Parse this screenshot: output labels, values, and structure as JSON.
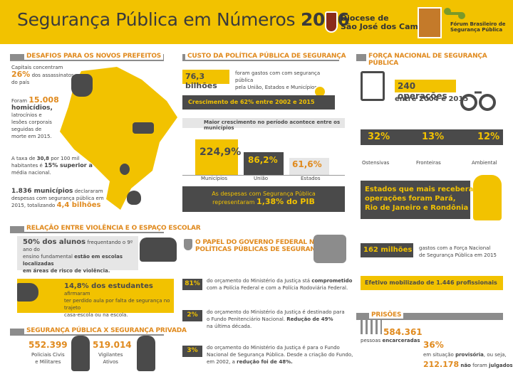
{
  "header": {
    "title_regular": "Segurança Pública em Números",
    "title_year": "2016",
    "diocese_line1": "Diocese de",
    "diocese_line2": "São José dos Campos",
    "forum_line1": "Fórum Brasileiro de",
    "forum_line2": "Segurança Pública"
  },
  "desafios": {
    "heading": "DESAFIOS PARA OS NOVOS PREFEITOS",
    "capitais_line1": "Capitais concentram",
    "capitais_pct": "26%",
    "capitais_line2": "dos assassinatos",
    "capitais_line3": "do país",
    "foram": "Foram",
    "homicidios_num": "15.008",
    "homicidios_label": "homicídios,",
    "lat_1": "latrocínios e",
    "lat_2": "lesões corporais",
    "lat_3": "seguidas de",
    "lat_4": "morte em 2015.",
    "taxa_1": "A taxa de",
    "taxa_num": "30,8",
    "taxa_2": "por 100 mil",
    "taxa_3": "habitantes é",
    "taxa_pct": "15% superior a",
    "taxa_4": "média nacional.",
    "mun_num": "1.836 municípios",
    "mun_1": "declararam",
    "mun_2": "despesas com segurança pública em",
    "mun_3": "2015, totalizando",
    "mun_total": "4,4 bilhões"
  },
  "custo": {
    "heading": "CUSTO DA POLÍTICA PÚBLICA DE SEGURANÇA",
    "valor": "76,3 bilhões",
    "desc_1": "foram gastos com com segurança pública",
    "desc_2": "pela União, Estados e Municípios.",
    "crescimento": "Crescimento de 62% entre 2002 e 2015",
    "maior": "Maior crescimento no período acontece entre os municípios",
    "bars": [
      {
        "label": "Municípios",
        "value": "224,9%"
      },
      {
        "label": "União",
        "value": "86,2%"
      },
      {
        "label": "Estados",
        "value": "61,6%"
      }
    ],
    "despesas_1": "As despesas com Segurança Pública",
    "despesas_2": "representaram",
    "despesas_pct": "1,38% do PIB"
  },
  "forca": {
    "heading": "FORÇA NACIONAL DE SEGURANÇA PÚBLICA",
    "operacoes": "240 operações",
    "periodo": "entre 2004 e 2015",
    "pcts": [
      {
        "value": "32%",
        "label": "Ostensivas"
      },
      {
        "value": "13%",
        "label": "Fronteiras"
      },
      {
        "value": "12%",
        "label": "Ambiental"
      }
    ],
    "estados_1": "Estados que mais receberam",
    "estados_2": "operações foram Pará,",
    "estados_3": "Rio de Janeiro e Rondônia",
    "milhoes": "162 milhões",
    "milhoes_1": "gastos com a Força Nacional",
    "milhoes_2": "de Segurança Pública em 2015",
    "efetivo": "Efetivo mobilizado de 1.446 profissionais"
  },
  "violencia": {
    "heading": "RELAÇÃO ENTRE VIOLÊNCIA E O ESPAÇO ESCOLAR",
    "alunos_pct": "50% dos alunos",
    "alunos_1": "frequentando o 9º ano do",
    "alunos_2": "ensino fundamental",
    "alunos_3": "estão em escolas localizadas",
    "alunos_4": "em áreas de risco de violência.",
    "estudantes_pct": "14,8% dos estudantes",
    "estudantes_1": "afirmaram",
    "estudantes_2": "ter perdido aula por falta de segurança no trajeto",
    "estudantes_3": "casa-escola ou na escola."
  },
  "privada": {
    "heading": "SEGURANÇA PÚBLICA X SEGURANÇA PRIVADA",
    "policiais_num": "552.399",
    "policiais_1": "Policiais Civis",
    "policiais_2": "e Militares",
    "vigilantes_num": "519.014",
    "vigilantes_1": "Vigilantes",
    "vigilantes_2": "Ativos"
  },
  "papel": {
    "heading_1": "O PAPEL DO GOVERNO FEDERAL NAS",
    "heading_2": "POLÍTICAS PÚBLICAS DE SEGURANÇA",
    "items": [
      {
        "pct": "81%",
        "t1": "do orçamento do Ministério da Justiça stá",
        "strong": "comprometido",
        "t2": "com a Polícia Federal e com a Polícia Rodoviária Federal."
      },
      {
        "pct": "2%",
        "t1": "do orçamento do Ministério da Justiça é destinado para",
        "t2a": "o Fundo Penitenciário Nacional.",
        "strong": "Redução de 49%",
        "t3": "na última década."
      },
      {
        "pct": "3%",
        "t1": "do orçamento do Ministério da Justiça é para o Fundo",
        "t2": "Nacional de Segurança Pública. Desde a criação do Fundo,",
        "t3": "em 2002, a",
        "strong": "redução foi de 48%."
      }
    ]
  },
  "prisoes": {
    "heading": "PRISÕES",
    "total": "584.361",
    "total_label_1": "pessoas",
    "total_label_2": "encarceradas",
    "provisoria_pct": "36%",
    "provisoria_1": "em situação",
    "provisoria_2": "provisória",
    "provisoria_3": ", ou seja,",
    "nao_julgados_num": "212.178",
    "nao_julgados_1": "não",
    "nao_julgados_2": "foram",
    "nao_julgados_3": "julgados"
  },
  "colors": {
    "yellow": "#f2c200",
    "orange": "#e08a1e",
    "dark": "#4a4a4a",
    "grey": "#8c8c8c"
  }
}
